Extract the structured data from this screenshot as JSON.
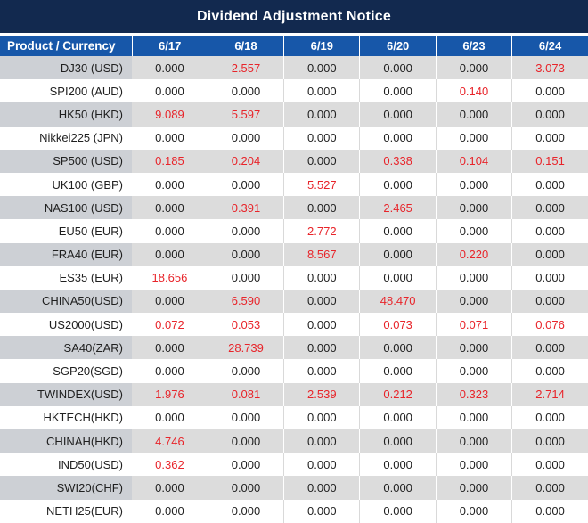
{
  "title": "Dividend Adjustment Notice",
  "chart_data": {
    "type": "table",
    "title": "Dividend Adjustment Notice",
    "columns": [
      "Product / Currency",
      "6/17",
      "6/18",
      "6/19",
      "6/20",
      "6/23",
      "6/24"
    ],
    "rows": [
      {
        "product": "DJ30 (USD)",
        "values": [
          "0.000",
          "2.557",
          "0.000",
          "0.000",
          "0.000",
          "3.073"
        ],
        "red": [
          0,
          1,
          0,
          0,
          0,
          1
        ]
      },
      {
        "product": "SPI200 (AUD)",
        "values": [
          "0.000",
          "0.000",
          "0.000",
          "0.000",
          "0.140",
          "0.000"
        ],
        "red": [
          0,
          0,
          0,
          0,
          1,
          0
        ]
      },
      {
        "product": "HK50 (HKD)",
        "values": [
          "9.089",
          "5.597",
          "0.000",
          "0.000",
          "0.000",
          "0.000"
        ],
        "red": [
          1,
          1,
          0,
          0,
          0,
          0
        ]
      },
      {
        "product": "Nikkei225 (JPN)",
        "values": [
          "0.000",
          "0.000",
          "0.000",
          "0.000",
          "0.000",
          "0.000"
        ],
        "red": [
          0,
          0,
          0,
          0,
          0,
          0
        ]
      },
      {
        "product": "SP500 (USD)",
        "values": [
          "0.185",
          "0.204",
          "0.000",
          "0.338",
          "0.104",
          "0.151"
        ],
        "red": [
          1,
          1,
          0,
          1,
          1,
          1
        ]
      },
      {
        "product": "UK100 (GBP)",
        "values": [
          "0.000",
          "0.000",
          "5.527",
          "0.000",
          "0.000",
          "0.000"
        ],
        "red": [
          0,
          0,
          1,
          0,
          0,
          0
        ]
      },
      {
        "product": "NAS100 (USD)",
        "values": [
          "0.000",
          "0.391",
          "0.000",
          "2.465",
          "0.000",
          "0.000"
        ],
        "red": [
          0,
          1,
          0,
          1,
          0,
          0
        ]
      },
      {
        "product": "EU50 (EUR)",
        "values": [
          "0.000",
          "0.000",
          "2.772",
          "0.000",
          "0.000",
          "0.000"
        ],
        "red": [
          0,
          0,
          1,
          0,
          0,
          0
        ]
      },
      {
        "product": "FRA40 (EUR)",
        "values": [
          "0.000",
          "0.000",
          "8.567",
          "0.000",
          "0.220",
          "0.000"
        ],
        "red": [
          0,
          0,
          1,
          0,
          1,
          0
        ]
      },
      {
        "product": "ES35 (EUR)",
        "values": [
          "18.656",
          "0.000",
          "0.000",
          "0.000",
          "0.000",
          "0.000"
        ],
        "red": [
          1,
          0,
          0,
          0,
          0,
          0
        ]
      },
      {
        "product": "CHINA50(USD)",
        "values": [
          "0.000",
          "6.590",
          "0.000",
          "48.470",
          "0.000",
          "0.000"
        ],
        "red": [
          0,
          1,
          0,
          1,
          0,
          0
        ]
      },
      {
        "product": "US2000(USD)",
        "values": [
          "0.072",
          "0.053",
          "0.000",
          "0.073",
          "0.071",
          "0.076"
        ],
        "red": [
          1,
          1,
          0,
          1,
          1,
          1
        ]
      },
      {
        "product": "SA40(ZAR)",
        "values": [
          "0.000",
          "28.739",
          "0.000",
          "0.000",
          "0.000",
          "0.000"
        ],
        "red": [
          0,
          1,
          0,
          0,
          0,
          0
        ]
      },
      {
        "product": "SGP20(SGD)",
        "values": [
          "0.000",
          "0.000",
          "0.000",
          "0.000",
          "0.000",
          "0.000"
        ],
        "red": [
          0,
          0,
          0,
          0,
          0,
          0
        ]
      },
      {
        "product": "TWINDEX(USD)",
        "values": [
          "1.976",
          "0.081",
          "2.539",
          "0.212",
          "0.323",
          "2.714"
        ],
        "red": [
          1,
          1,
          1,
          1,
          1,
          1
        ]
      },
      {
        "product": "HKTECH(HKD)",
        "values": [
          "0.000",
          "0.000",
          "0.000",
          "0.000",
          "0.000",
          "0.000"
        ],
        "red": [
          0,
          0,
          0,
          0,
          0,
          0
        ]
      },
      {
        "product": "CHINAH(HKD)",
        "values": [
          "4.746",
          "0.000",
          "0.000",
          "0.000",
          "0.000",
          "0.000"
        ],
        "red": [
          1,
          0,
          0,
          0,
          0,
          0
        ]
      },
      {
        "product": "IND50(USD)",
        "values": [
          "0.362",
          "0.000",
          "0.000",
          "0.000",
          "0.000",
          "0.000"
        ],
        "red": [
          1,
          0,
          0,
          0,
          0,
          0
        ]
      },
      {
        "product": "SWI20(CHF)",
        "values": [
          "0.000",
          "0.000",
          "0.000",
          "0.000",
          "0.000",
          "0.000"
        ],
        "red": [
          0,
          0,
          0,
          0,
          0,
          0
        ]
      },
      {
        "product": "NETH25(EUR)",
        "values": [
          "0.000",
          "0.000",
          "0.000",
          "0.000",
          "0.000",
          "0.000"
        ],
        "red": [
          0,
          0,
          0,
          0,
          0,
          0
        ]
      }
    ]
  },
  "colors": {
    "title_bg": "#12294f",
    "header_bg": "#1757a9",
    "row_stripe_label": "#cdd0d5",
    "row_stripe_value": "#dcdcdc",
    "divider_on_stripe": "#ffffff",
    "divider_on_white": "#d9d9d9",
    "red_value": "#e8242a",
    "text": "#1f1f1f"
  }
}
